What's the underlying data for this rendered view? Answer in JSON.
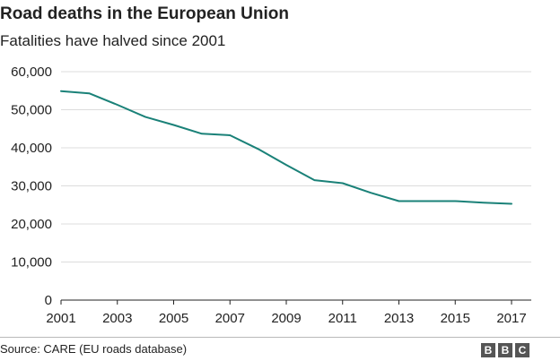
{
  "header": {
    "title": "Road deaths in the European Union",
    "subtitle": "Fatalities have halved since 2001"
  },
  "footer": {
    "source": "Source: CARE (EU roads database)",
    "logo_letters": [
      "B",
      "B",
      "C"
    ]
  },
  "colors": {
    "line": "#1a8178",
    "grid": "#dcdcdc",
    "axis": "#222222",
    "text": "#222222"
  },
  "chart_data": {
    "type": "line",
    "title": "Road deaths in the European Union",
    "subtitle": "Fatalities have halved since 2001",
    "xlabel": "",
    "ylabel": "",
    "x": [
      2001,
      2002,
      2003,
      2004,
      2005,
      2006,
      2007,
      2008,
      2009,
      2010,
      2011,
      2012,
      2013,
      2014,
      2015,
      2016,
      2017
    ],
    "series": [
      {
        "values": [
          54900,
          54300,
          51300,
          48100,
          46000,
          43700,
          43300,
          39700,
          35500,
          31500,
          30700,
          28200,
          26000,
          26000,
          26000,
          25600,
          25300
        ]
      }
    ],
    "ylim": [
      0,
      60000
    ],
    "yticks": [
      0,
      10000,
      20000,
      30000,
      40000,
      50000,
      60000
    ],
    "ytick_labels": [
      "0",
      "10,000",
      "20,000",
      "30,000",
      "40,000",
      "50,000",
      "60,000"
    ],
    "xticks": [
      2001,
      2003,
      2005,
      2007,
      2009,
      2011,
      2013,
      2015,
      2017
    ],
    "xtick_labels": [
      "2001",
      "2003",
      "2005",
      "2007",
      "2009",
      "2011",
      "2013",
      "2015",
      "2017"
    ],
    "grid": true,
    "legend": "none"
  }
}
